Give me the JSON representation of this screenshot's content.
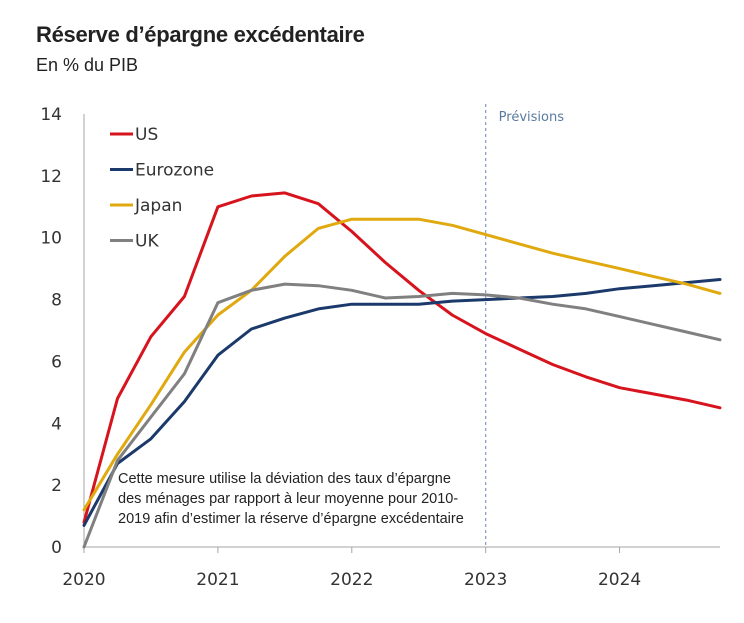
{
  "title": "Réserve d’épargne excédentaire",
  "subtitle": "En % du PIB",
  "note_lines": [
    "Cette mesure utilise la déviation des taux d’épargne",
    "des ménages par rapport à leur moyenne pour 2010-",
    "2019 afin d’estimer la réserve d’épargne excédentaire"
  ],
  "chart_data": {
    "type": "line",
    "title": "Réserve d’épargne excédentaire",
    "subtitle": "En % du PIB",
    "xlim": [
      2020,
      2024.75
    ],
    "ylim": [
      0,
      14
    ],
    "x_ticks": [
      "2020",
      "2021",
      "2022",
      "2023",
      "2024"
    ],
    "y_ticks": [
      "0",
      "2",
      "4",
      "6",
      "8",
      "10",
      "12",
      "14"
    ],
    "grid": false,
    "legend_position": "top-left",
    "forecast_start": 2023,
    "forecast_label": "Prévisions",
    "x": [
      2020,
      2020.25,
      2020.5,
      2020.75,
      2021,
      2021.25,
      2021.5,
      2021.75,
      2022,
      2022.25,
      2022.5,
      2022.75,
      2023,
      2023.25,
      2023.5,
      2023.75,
      2024,
      2024.25,
      2024.5,
      2024.75
    ],
    "series": [
      {
        "name": "US",
        "color": "#d7141e",
        "values": [
          0.8,
          4.8,
          6.8,
          8.1,
          11.0,
          11.35,
          11.45,
          11.1,
          10.2,
          9.2,
          8.3,
          7.5,
          6.9,
          6.4,
          5.9,
          5.5,
          5.15,
          4.95,
          4.75,
          4.5
        ]
      },
      {
        "name": "Eurozone",
        "color": "#1b3a6b",
        "values": [
          0.7,
          2.7,
          3.5,
          4.7,
          6.2,
          7.05,
          7.4,
          7.7,
          7.85,
          7.85,
          7.85,
          7.95,
          8.0,
          8.05,
          8.1,
          8.2,
          8.35,
          8.45,
          8.55,
          8.65
        ]
      },
      {
        "name": "Japan",
        "color": "#e0a90f",
        "values": [
          1.2,
          3.0,
          4.6,
          6.3,
          7.5,
          8.3,
          9.4,
          10.3,
          10.6,
          10.6,
          10.6,
          10.4,
          10.1,
          9.8,
          9.5,
          9.25,
          9.0,
          8.75,
          8.5,
          8.2
        ]
      },
      {
        "name": "UK",
        "color": "#808080",
        "values": [
          0.0,
          2.8,
          4.2,
          5.6,
          7.9,
          8.3,
          8.5,
          8.45,
          8.3,
          8.05,
          8.1,
          8.2,
          8.15,
          8.05,
          7.85,
          7.7,
          7.45,
          7.2,
          6.95,
          6.7
        ]
      }
    ]
  }
}
